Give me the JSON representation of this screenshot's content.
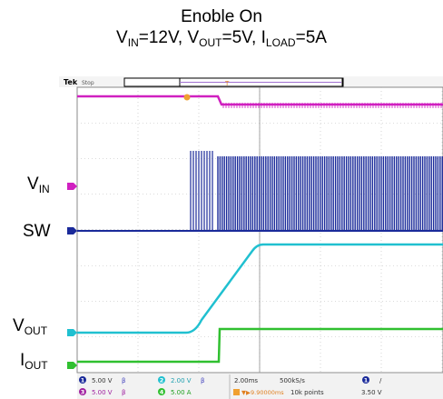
{
  "chart_data": {
    "type": "line",
    "title": "Enoble On",
    "subtitle_parts": [
      {
        "t": "V"
      },
      {
        "t": "IN",
        "sub": true
      },
      {
        "t": "=12V, V"
      },
      {
        "t": "OUT",
        "sub": true
      },
      {
        "t": "=5V, I"
      },
      {
        "t": "LOAD",
        "sub": true
      },
      {
        "t": "=5A"
      }
    ],
    "series": [
      {
        "name": "VIN",
        "color": "#d020c0"
      },
      {
        "name": "SW",
        "color": "#1a2a9a"
      },
      {
        "name": "VOUT",
        "color": "#20c0d0"
      },
      {
        "name": "IOUT",
        "color": "#30c030"
      }
    ],
    "grid": true
  },
  "labels": {
    "vin": {
      "main": "V",
      "sub": "IN"
    },
    "sw": {
      "main": "SW",
      "sub": ""
    },
    "vout": {
      "main": "V",
      "sub": "OUT"
    },
    "iout": {
      "main": "I",
      "sub": "OUT"
    }
  },
  "scope": {
    "brand": "Tek",
    "state": "Stop",
    "trigger_marker": "T",
    "readouts": {
      "ch1": {
        "num": "1",
        "scale": "5.00 V"
      },
      "ch2": {
        "num": "2",
        "scale": "2.00 V"
      },
      "ch3": {
        "num": "3",
        "scale": "5.00 V"
      },
      "ch4": {
        "num": "4",
        "scale": "5.00 A"
      },
      "timebase": "2.00ms",
      "sample_rate": "500kS/s",
      "delay": "9.90000ms",
      "record": "10k points",
      "trig_ch": "1",
      "trig_slope": "/",
      "trig_level": "3.50 V"
    }
  },
  "colors": {
    "vin": "#d020c0",
    "sw": "#1a2a9a",
    "vout": "#20c0d0",
    "iout": "#30c030",
    "grid": "#b8b8b8",
    "grid_center": "#909090"
  }
}
